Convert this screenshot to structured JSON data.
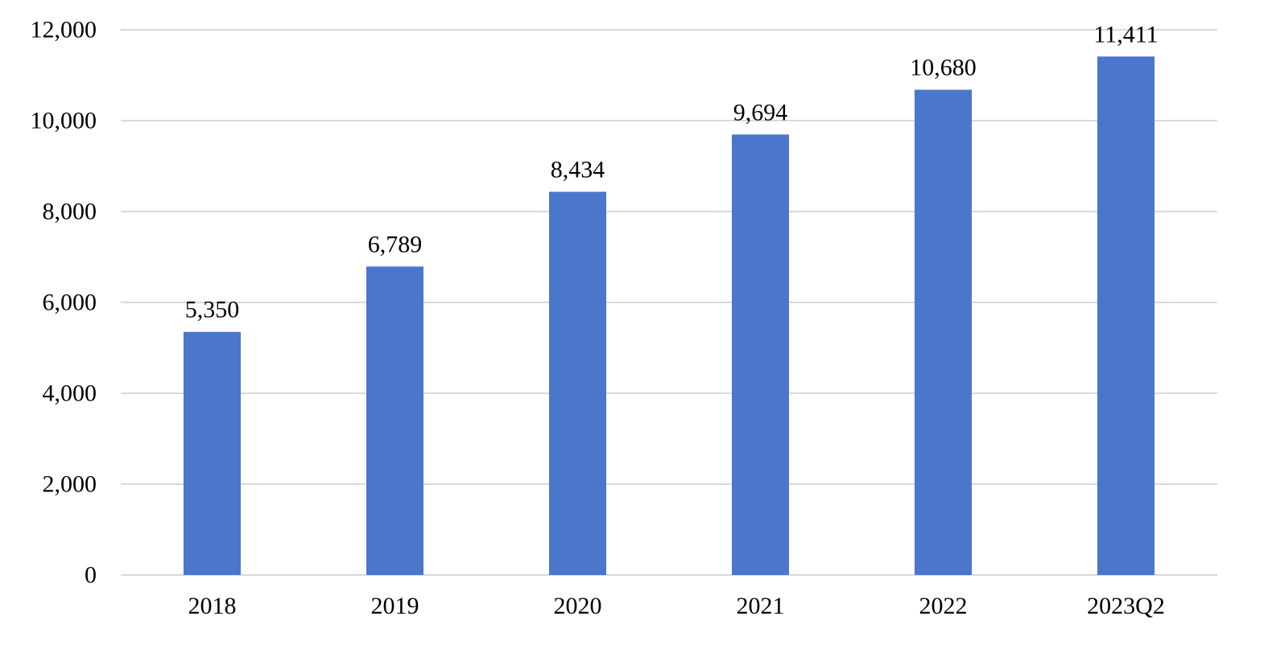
{
  "chart_data": {
    "type": "bar",
    "categories": [
      "2018",
      "2019",
      "2020",
      "2021",
      "2022",
      "2023Q2"
    ],
    "values": [
      5350,
      6789,
      8434,
      9694,
      10680,
      11411
    ],
    "data_labels": [
      "5,350",
      "6,789",
      "8,434",
      "9,694",
      "10,680",
      "11,411"
    ],
    "title": "",
    "xlabel": "",
    "ylabel": "",
    "ylim": [
      0,
      12000
    ],
    "yticks": [
      0,
      2000,
      4000,
      6000,
      8000,
      10000,
      12000
    ],
    "ytick_labels": [
      "0",
      "2,000",
      "4,000",
      "6,000",
      "8,000",
      "10,000",
      "12,000"
    ],
    "grid": true,
    "legend": "none",
    "bar_color": "#4a76cb",
    "grid_color": "#d9d9d9"
  }
}
